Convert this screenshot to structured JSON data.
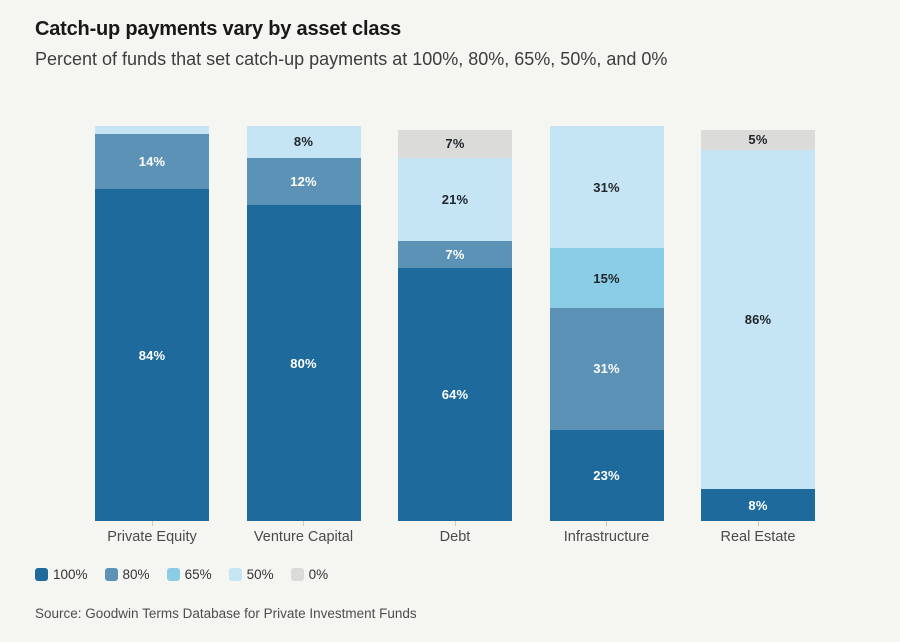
{
  "header": {
    "title": "Catch-up payments vary by asset class",
    "subtitle": "Percent of funds that set catch-up payments at 100%, 80%, 65%, 50%, and 0%"
  },
  "chart_data": {
    "type": "bar",
    "stacked": true,
    "orientation": "vertical",
    "title": "Catch-up payments vary by asset class",
    "subtitle": "Percent of funds that set catch-up payments at 100%, 80%, 65%, 50%, and 0%",
    "categories": [
      "Private Equity",
      "Venture Capital",
      "Debt",
      "Infrastructure",
      "Real Estate"
    ],
    "series": [
      {
        "name": "100%",
        "color": "#1e6a9c",
        "label_color": "#ffffff",
        "values": [
          84,
          80,
          64,
          23,
          8
        ]
      },
      {
        "name": "80%",
        "color": "#5b92b5",
        "label_color": "#ffffff",
        "values": [
          14,
          12,
          7,
          31,
          0
        ]
      },
      {
        "name": "65%",
        "color": "#8bcde6",
        "label_color": "#20262b",
        "values": [
          0,
          0,
          0,
          15,
          0
        ]
      },
      {
        "name": "50%",
        "color": "#c6e5f4",
        "label_color": "#20262b",
        "values": [
          2,
          8,
          21,
          31,
          86
        ]
      },
      {
        "name": "0%",
        "color": "#dbdbd9",
        "label_color": "#20262b",
        "values": [
          0,
          0,
          7,
          0,
          5
        ]
      }
    ],
    "ylim": [
      0,
      100
    ],
    "grid": false,
    "legend_position": "bottom-left",
    "value_suffix": "%",
    "min_label_value": 3
  },
  "legend": {
    "entries": [
      "100%",
      "80%",
      "65%",
      "50%",
      "0%"
    ]
  },
  "source": {
    "text": "Source: Goodwin Terms Database for Private Investment Funds"
  },
  "colors": {
    "background": "#f5f5f2",
    "axis_tick": "#c9c9c5",
    "category_label": "#4a4a4a",
    "source_text": "#4d4d4d"
  }
}
